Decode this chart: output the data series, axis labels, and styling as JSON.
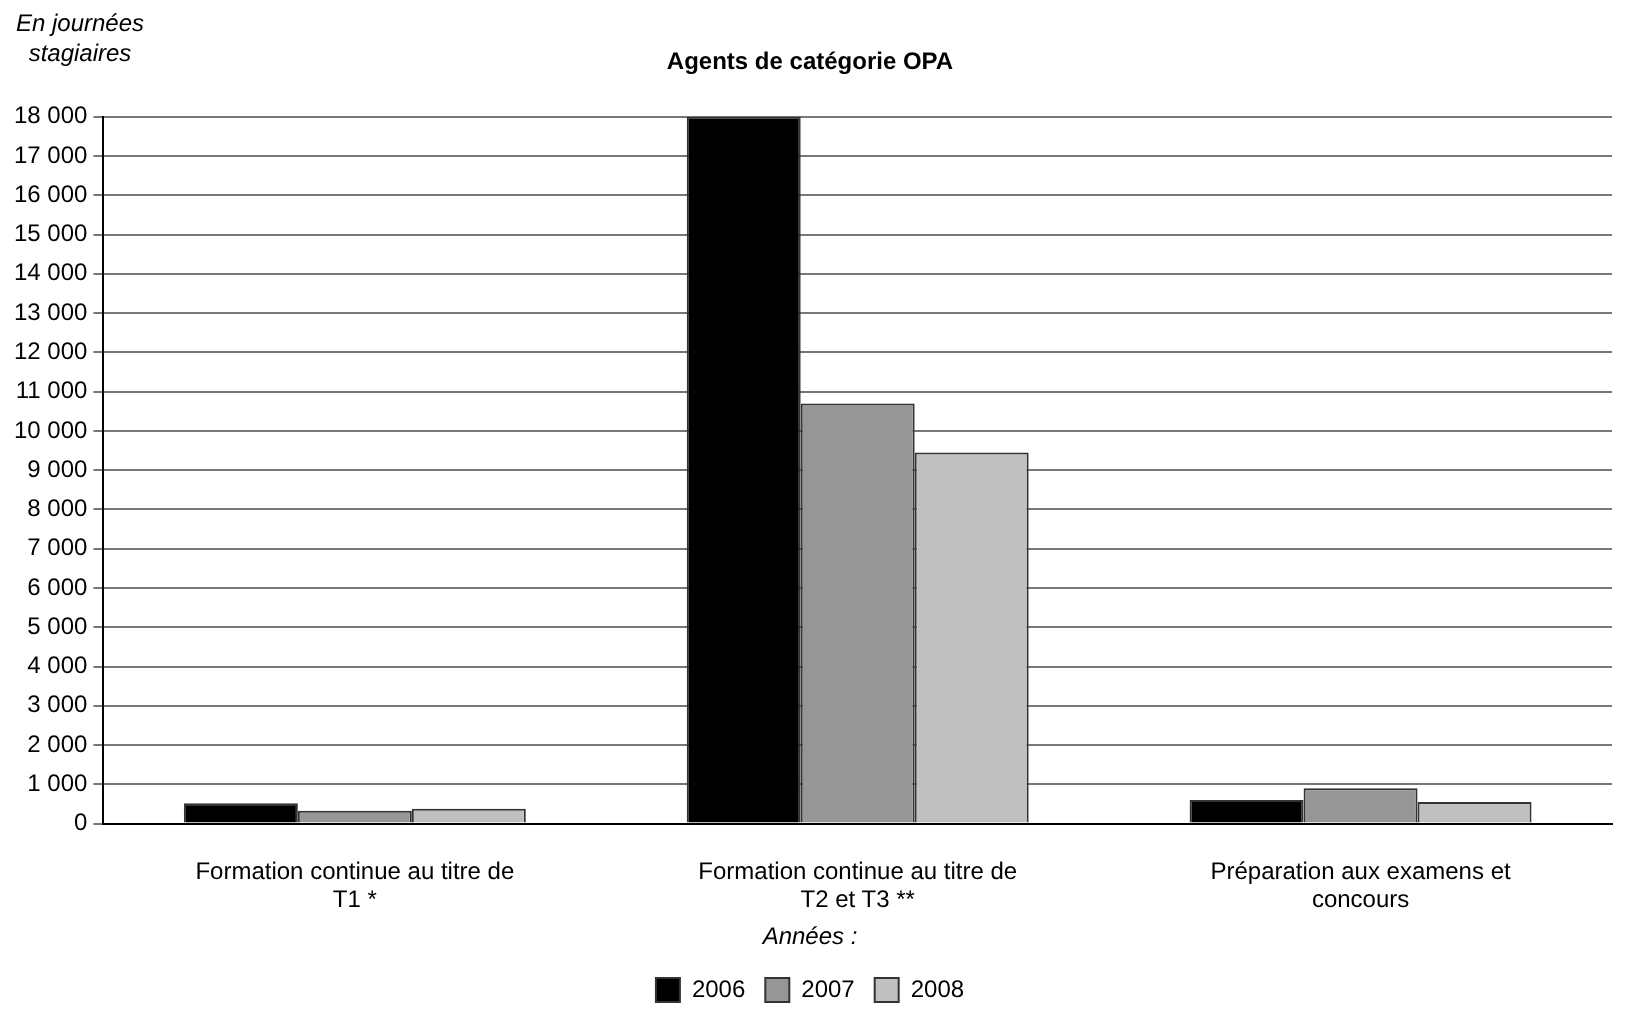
{
  "chart_data": {
    "type": "bar",
    "title": "Agents de catégorie OPA",
    "ylabel": "En journées stagiaires",
    "legend_title": "Années :",
    "categories": [
      "Formation continue au titre de T1 *",
      "Formation continue au titre de T2 et T3 **",
      "Préparation aux examens et concours"
    ],
    "series": [
      {
        "name": "2006",
        "color": "#000000",
        "values": [
          520,
          18000,
          600
        ]
      },
      {
        "name": "2007",
        "color": "#969696",
        "values": [
          330,
          10700,
          900
        ]
      },
      {
        "name": "2008",
        "color": "#c0c0c0",
        "values": [
          380,
          9450,
          550
        ]
      }
    ],
    "ylim": [
      0,
      18000
    ],
    "yticks": [
      0,
      1000,
      2000,
      3000,
      4000,
      5000,
      6000,
      7000,
      8000,
      9000,
      10000,
      11000,
      12000,
      13000,
      14000,
      15000,
      16000,
      17000,
      18000
    ],
    "grid": "y",
    "legend": "bottom"
  }
}
